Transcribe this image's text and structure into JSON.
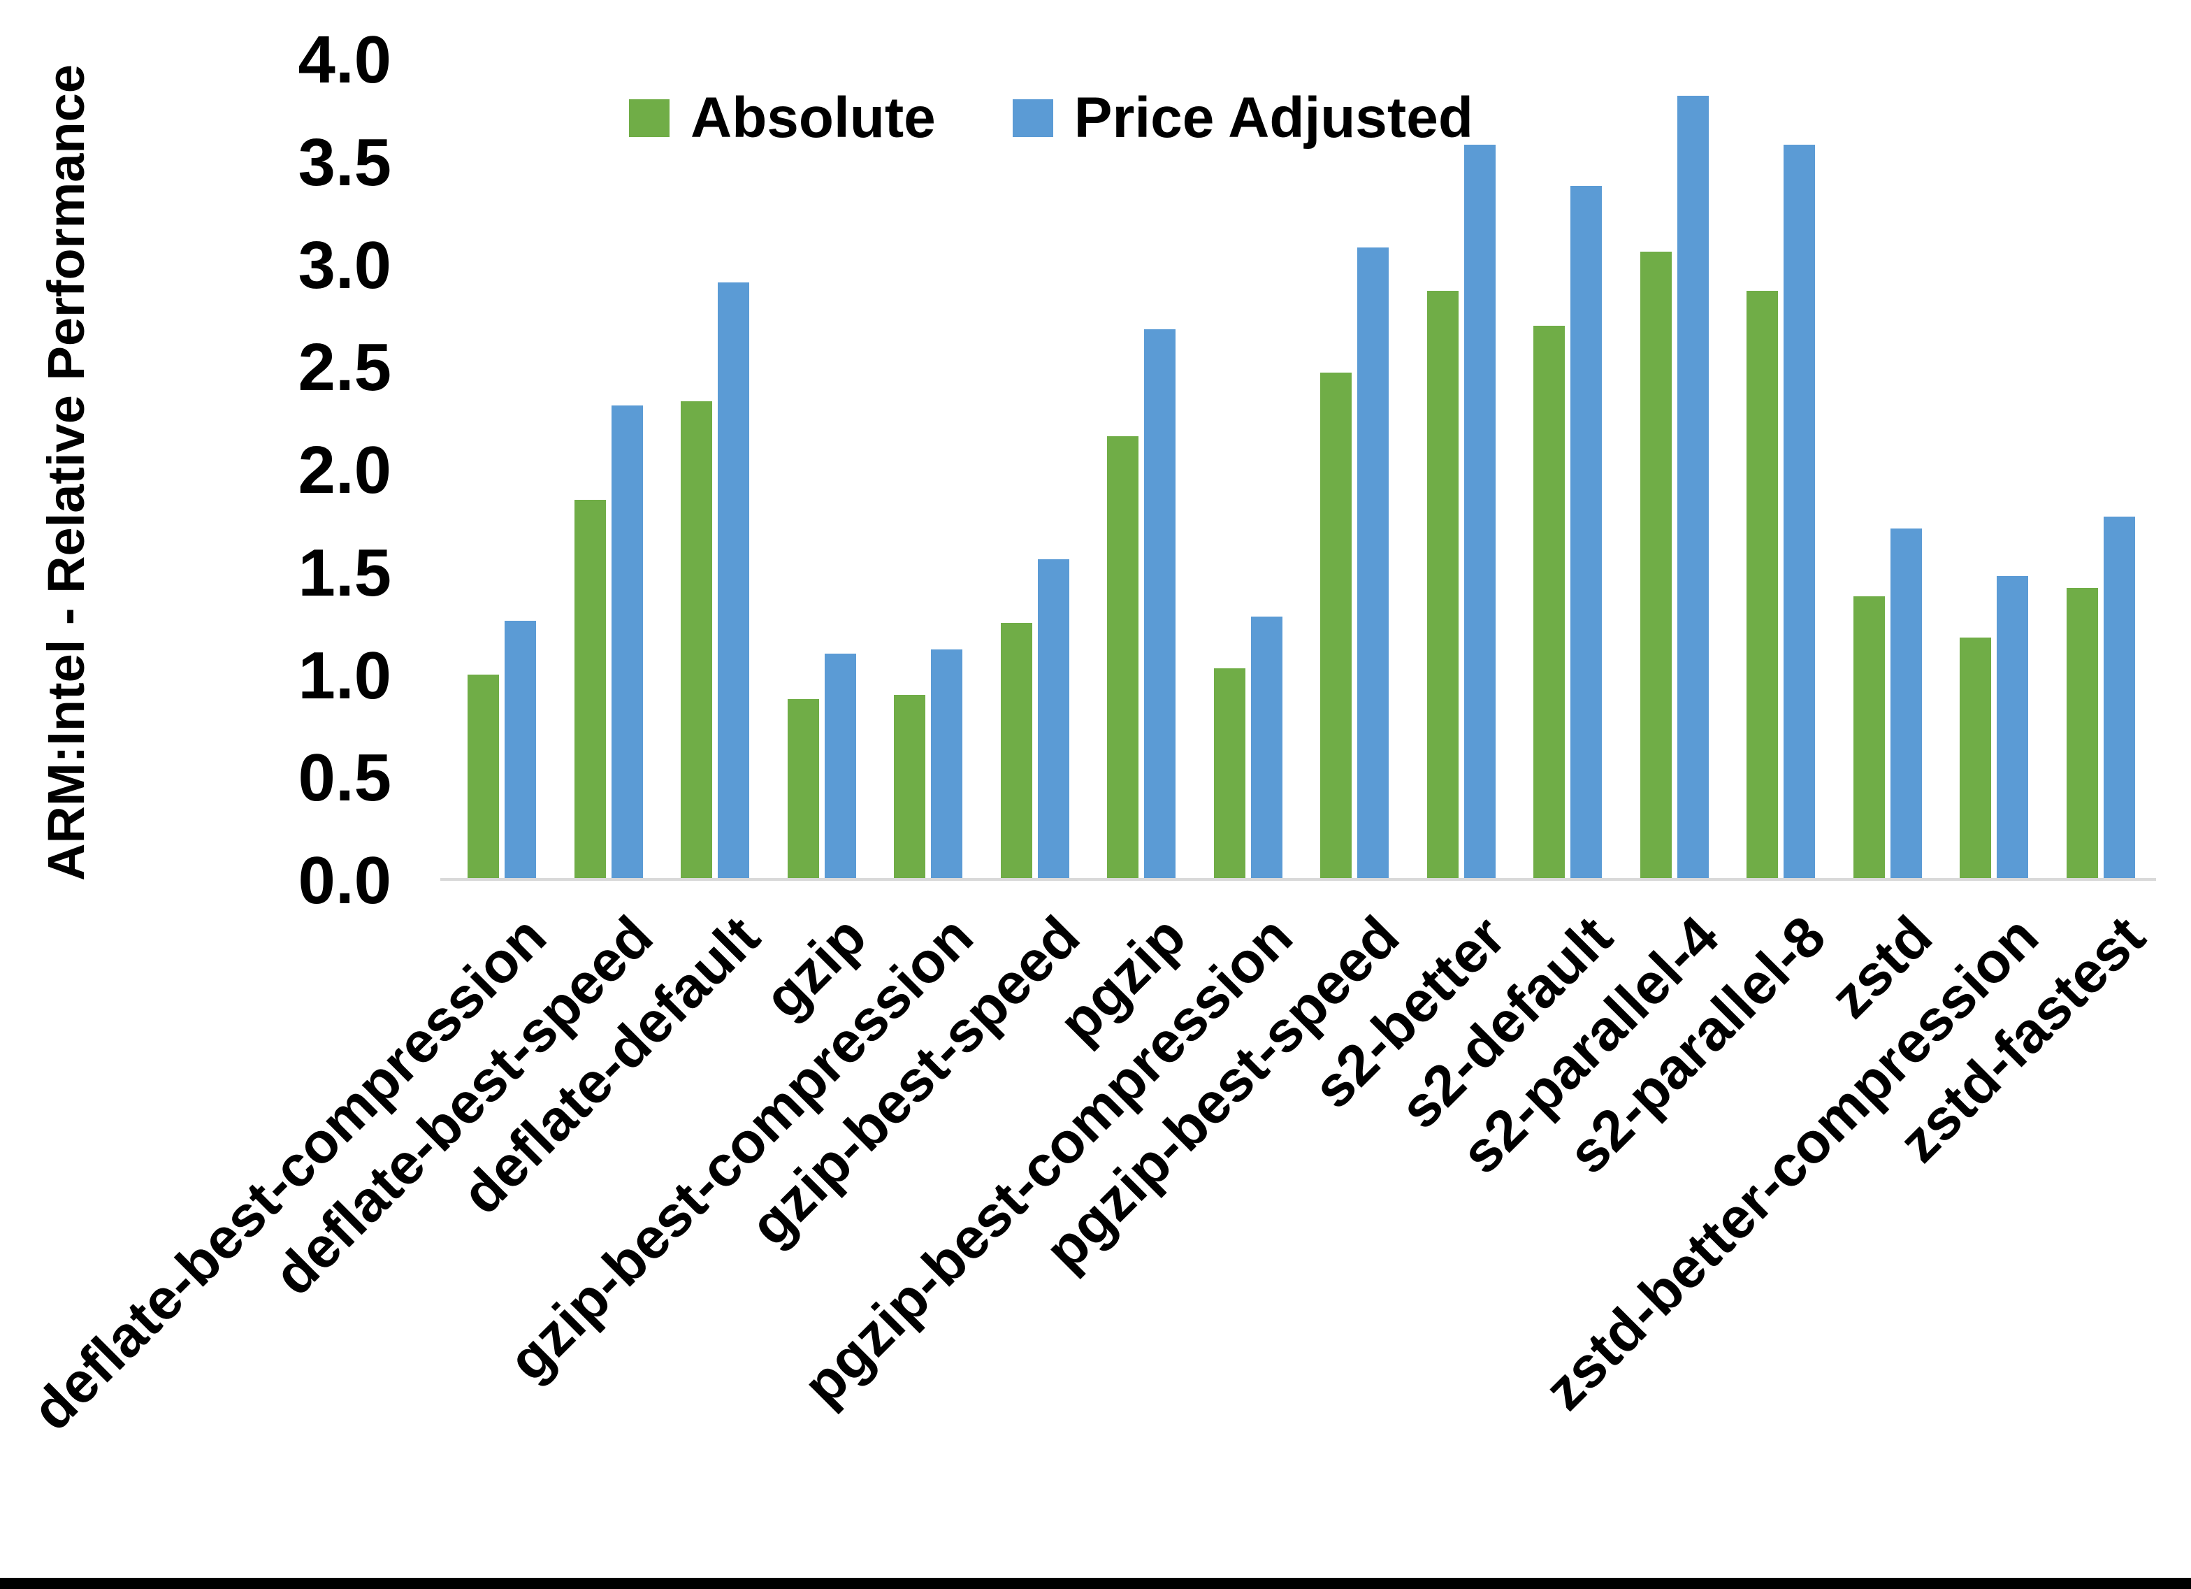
{
  "page": {
    "background": "#FFFFFF",
    "bottom_border_color": "#000000"
  },
  "chart_data": {
    "type": "bar",
    "title": "",
    "xlabel": "",
    "ylabel": "ARM:Intel - Relative Performance",
    "ylim": [
      0.0,
      4.0
    ],
    "ytick_step": 0.5,
    "ytick_labels": [
      "0.0",
      "0.5",
      "1.0",
      "1.5",
      "2.0",
      "2.5",
      "3.0",
      "3.5",
      "4.0"
    ],
    "grid": false,
    "legend_position": "top-center",
    "axis_line_color": "#D9D9D9",
    "categories": [
      "deflate-best-compression",
      "deflate-best-speed",
      "deflate-default",
      "gzip",
      "gzip-best-compression",
      "gzip-best-speed",
      "pgzip",
      "pgzip-best-compression",
      "pgzip-best-speed",
      "s2-better",
      "s2-default",
      "s2-parallel-4",
      "s2-parallel-8",
      "zstd",
      "zstd-better-compression",
      "zstd-fastest"
    ],
    "series": [
      {
        "name": "Absolute",
        "color": "#70AD47",
        "values": [
          1.0,
          1.85,
          2.33,
          0.88,
          0.9,
          1.25,
          2.16,
          1.03,
          2.47,
          2.87,
          2.7,
          3.06,
          2.87,
          1.38,
          1.18,
          1.42
        ]
      },
      {
        "name": "Price Adjusted",
        "color": "#5B9BD5",
        "values": [
          1.26,
          2.31,
          2.91,
          1.1,
          1.12,
          1.56,
          2.68,
          1.28,
          3.08,
          3.58,
          3.38,
          3.82,
          3.58,
          1.71,
          1.48,
          1.77
        ]
      }
    ]
  }
}
